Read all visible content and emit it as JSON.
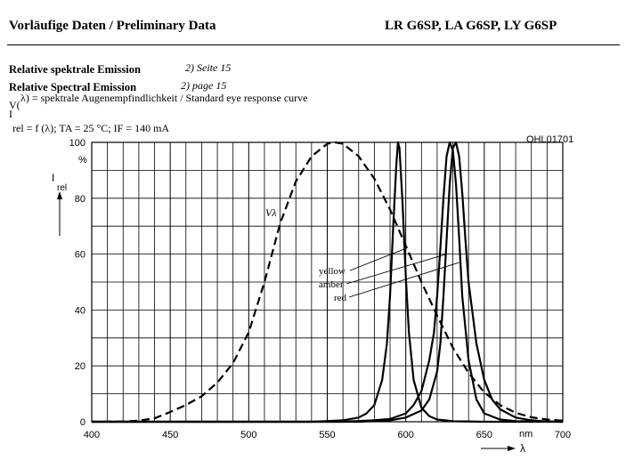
{
  "header": {
    "left": "Vorläufige Daten / Preliminary Data",
    "right": "LR G6SP, LA G6SP, LY G6SP"
  },
  "section": {
    "title_de": "Relative spektrale Emission",
    "ref_de": "2) Seite 15",
    "title_en": "Relative Spectral Emission",
    "ref_en": "2) page 15",
    "vlambda_prefix": "V(",
    "vlambda_desc": "λ) = spektrale Augenempfindlichkeit / Standard eye response curve",
    "conditions_i": "I",
    "conditions": "rel = f (λ); TA = 25 °C; IF = 140 mA"
  },
  "chart_data": {
    "type": "line",
    "title": "",
    "figure_id": "OHL01701",
    "xlabel": "λ",
    "xunit": "nm",
    "ylabel": "I",
    "ylabel_sub": "rel",
    "yunit": "%",
    "xlim": [
      400,
      700
    ],
    "ylim": [
      0,
      100
    ],
    "xticks": [
      400,
      450,
      500,
      550,
      600,
      650,
      700
    ],
    "yticks": [
      0,
      20,
      40,
      60,
      80,
      100
    ],
    "grid": true,
    "series": [
      {
        "name": "Vλ",
        "style": "dashed",
        "x": [
          400,
          420,
          430,
          440,
          450,
          460,
          470,
          480,
          490,
          500,
          510,
          520,
          530,
          540,
          550,
          555,
          560,
          570,
          580,
          590,
          600,
          610,
          620,
          630,
          640,
          650,
          660,
          670,
          680,
          690,
          700
        ],
        "y": [
          0,
          0.1,
          0.4,
          1.2,
          3.5,
          6.0,
          9.1,
          14.0,
          21.0,
          32.0,
          50.0,
          71.0,
          86.0,
          95.0,
          99.5,
          100,
          99.5,
          95.0,
          87.0,
          76.0,
          63.0,
          50.0,
          38.0,
          26.5,
          17.5,
          10.5,
          6.0,
          3.2,
          1.6,
          0.8,
          0.4
        ]
      },
      {
        "name": "yellow",
        "style": "solid",
        "x": [
          400,
          540,
          560,
          570,
          575,
          580,
          585,
          588,
          590,
          592,
          594,
          595,
          596,
          598,
          600,
          602,
          605,
          610,
          615,
          620,
          630,
          650,
          700
        ],
        "y": [
          0,
          0,
          0.5,
          1.5,
          3.0,
          6.0,
          15.0,
          28.0,
          45.0,
          70.0,
          92.0,
          100,
          98.0,
          78.0,
          52.0,
          32.0,
          15.0,
          5.0,
          2.0,
          0.8,
          0.2,
          0,
          0
        ]
      },
      {
        "name": "amber",
        "style": "solid",
        "x": [
          400,
          560,
          580,
          590,
          600,
          605,
          610,
          615,
          618,
          620,
          622,
          624,
          626,
          628,
          630,
          632,
          634,
          636,
          640,
          645,
          650,
          660,
          670,
          700
        ],
        "y": [
          0,
          0,
          0.5,
          1.0,
          3.0,
          6.0,
          11.0,
          22.0,
          32.0,
          45.0,
          62.0,
          80.0,
          95.0,
          100,
          97.0,
          85.0,
          66.0,
          45.0,
          22.0,
          8.0,
          3.0,
          0.8,
          0.2,
          0
        ]
      },
      {
        "name": "red",
        "style": "solid",
        "x": [
          400,
          570,
          590,
          600,
          610,
          615,
          620,
          622,
          624,
          626,
          628,
          630,
          632,
          634,
          636,
          638,
          640,
          645,
          650,
          655,
          660,
          670,
          680,
          690,
          700
        ],
        "y": [
          0,
          0,
          0.5,
          1.5,
          4.0,
          8.0,
          18.0,
          28.0,
          45.0,
          65.0,
          85.0,
          98.0,
          100,
          95.0,
          82.0,
          65.0,
          50.0,
          28.0,
          15.0,
          8.0,
          4.5,
          1.5,
          0.5,
          0.1,
          0
        ]
      }
    ],
    "annotations": [
      "Vλ",
      "yellow",
      "amber",
      "red"
    ]
  }
}
